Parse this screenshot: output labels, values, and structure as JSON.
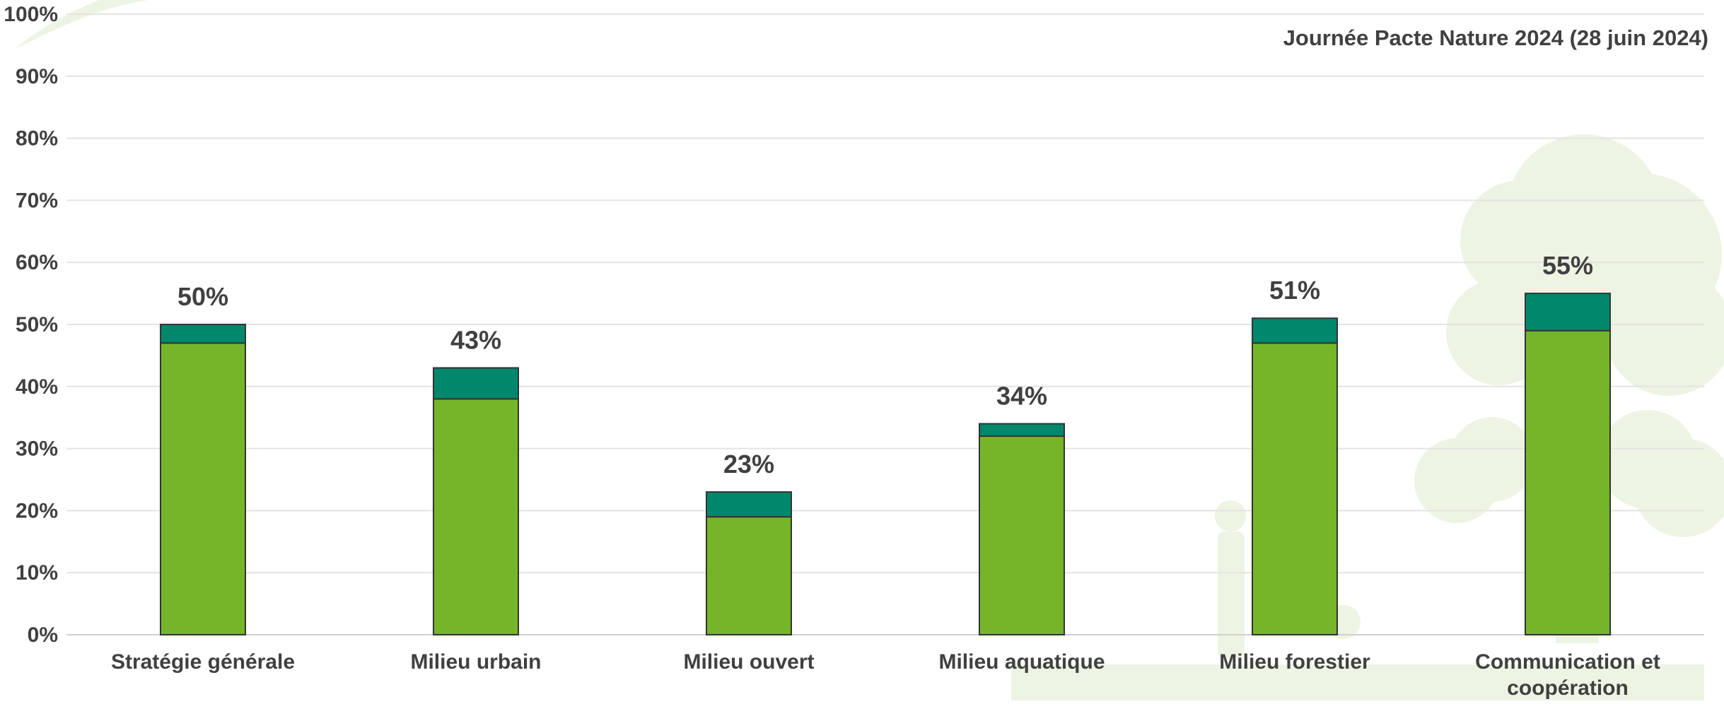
{
  "header": {
    "subtitle": "Journée Pacte Nature 2024 (28 juin 2024)"
  },
  "colors": {
    "primary": "#76B52A",
    "secondary": "#00876C",
    "gridline": "#E3E3E3",
    "text": "#404040",
    "decoration": "#EEF4E3"
  },
  "chart_data": {
    "type": "bar",
    "stacked": true,
    "categories": [
      "Stratégie générale",
      "Milieu urbain",
      "Milieu ouvert",
      "Milieu aquatique",
      "Milieu forestier",
      "Communication et coopération"
    ],
    "series": [
      {
        "color": "#76B52A",
        "values": [
          47,
          38,
          19,
          32,
          47,
          49
        ]
      },
      {
        "color": "#00876C",
        "values": [
          3,
          5,
          4,
          2,
          4,
          6
        ]
      }
    ],
    "totals": [
      50,
      43,
      23,
      34,
      51,
      55
    ],
    "total_labels": [
      "50%",
      "43%",
      "23%",
      "34%",
      "51%",
      "55%"
    ],
    "ylim": [
      0,
      100
    ],
    "yticks": [
      0,
      10,
      20,
      30,
      40,
      50,
      60,
      70,
      80,
      90,
      100
    ],
    "ytick_labels": [
      "0%",
      "10%",
      "20%",
      "30%",
      "40%",
      "50%",
      "60%",
      "70%",
      "80%",
      "90%",
      "100%"
    ],
    "grid": true,
    "legend": "none"
  }
}
